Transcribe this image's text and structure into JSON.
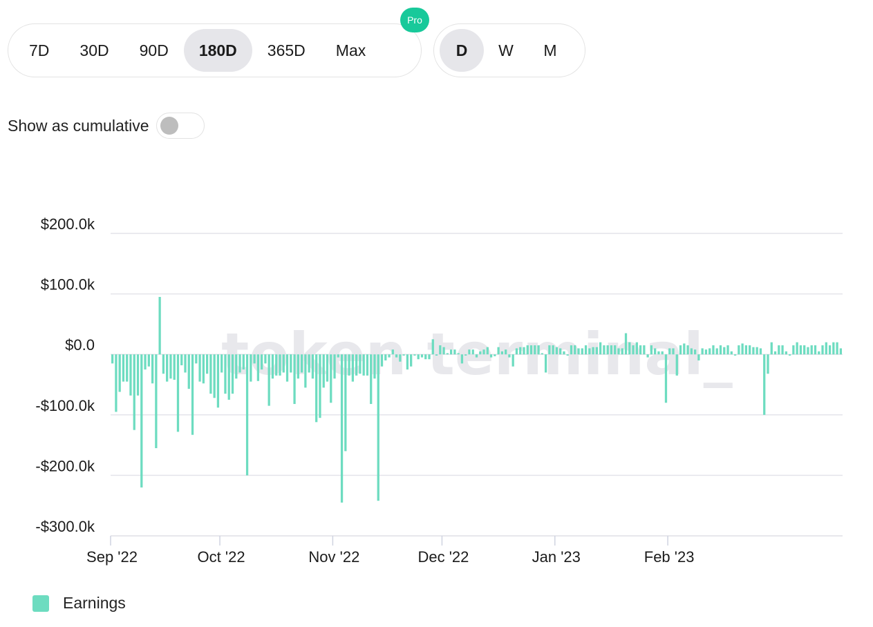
{
  "range_tabs": [
    {
      "label": "7D",
      "active": false
    },
    {
      "label": "30D",
      "active": false
    },
    {
      "label": "90D",
      "active": false
    },
    {
      "label": "180D",
      "active": true
    },
    {
      "label": "365D",
      "active": false
    },
    {
      "label": "Max",
      "active": false
    }
  ],
  "pro_badge": "Pro",
  "granularity_tabs": [
    {
      "label": "D",
      "active": true
    },
    {
      "label": "W",
      "active": false
    },
    {
      "label": "M",
      "active": false
    }
  ],
  "cumulative": {
    "label": "Show as cumulative",
    "enabled": false
  },
  "watermark": "token terminal_",
  "colors": {
    "earnings": "#6ddcc0",
    "grid": "#e4e4ea",
    "watermark": "#e6e6ea",
    "pro": "#18c99a"
  },
  "chart_data": {
    "type": "bar",
    "start_date": "2022-09-01",
    "x_ticks": [
      {
        "label": "Sep '22",
        "day": 0
      },
      {
        "label": "Oct '22",
        "day": 30
      },
      {
        "label": "Nov '22",
        "day": 61
      },
      {
        "label": "Dec '22",
        "day": 91
      },
      {
        "label": "Jan '23",
        "day": 122
      },
      {
        "label": "Feb '23",
        "day": 153
      }
    ],
    "y_ticks": [
      {
        "label": "$200.0k",
        "value": 200000
      },
      {
        "label": "$100.0k",
        "value": 100000
      },
      {
        "label": "$0.0",
        "value": 0
      },
      {
        "label": "-$100.0k",
        "value": -100000
      },
      {
        "label": "-$200.0k",
        "value": -200000
      },
      {
        "label": "-$300.0k",
        "value": -300000
      }
    ],
    "ylim": [
      -300000,
      200000
    ],
    "grid": true,
    "legend_position": "bottom-left",
    "series": [
      {
        "name": "Earnings",
        "values": [
          -15,
          -95,
          -62,
          -45,
          -45,
          -68,
          -125,
          -68,
          -220,
          -25,
          -20,
          -48,
          -155,
          95,
          -32,
          -45,
          -40,
          -42,
          -128,
          -18,
          -30,
          -57,
          -133,
          -15,
          -45,
          -48,
          -32,
          -65,
          -72,
          -88,
          -30,
          -65,
          -75,
          -65,
          -40,
          -30,
          -25,
          -200,
          -45,
          -15,
          -44,
          -25,
          -15,
          -85,
          -40,
          -35,
          -35,
          -30,
          -45,
          -30,
          -82,
          -40,
          -30,
          -55,
          -30,
          -40,
          -112,
          -105,
          -55,
          -45,
          -80,
          -40,
          -5,
          -245,
          -160,
          -35,
          -45,
          -35,
          -32,
          -35,
          -35,
          -82,
          -40,
          -242,
          -20,
          -10,
          -5,
          8,
          -5,
          -12,
          -2,
          -25,
          -20,
          -2,
          -8,
          -5,
          -8,
          -8,
          25,
          -2,
          15,
          12,
          2,
          8,
          8,
          2,
          -15,
          -2,
          8,
          8,
          -5,
          5,
          8,
          12,
          -5,
          -3,
          12,
          5,
          8,
          -5,
          -20,
          10,
          12,
          12,
          15,
          15,
          15,
          15,
          2,
          -30,
          15,
          15,
          12,
          10,
          5,
          -2,
          15,
          15,
          10,
          10,
          15,
          10,
          12,
          12,
          20,
          15,
          15,
          15,
          15,
          10,
          10,
          35,
          20,
          15,
          20,
          15,
          15,
          -5,
          15,
          10,
          5,
          5,
          -80,
          10,
          10,
          -35,
          15,
          18,
          15,
          10,
          8,
          -10,
          10,
          8,
          10,
          15,
          10,
          15,
          12,
          15,
          5,
          -2,
          15,
          18,
          15,
          15,
          12,
          12,
          10,
          -100,
          -32,
          20,
          5,
          15,
          15,
          5,
          -2,
          15,
          20,
          15,
          15,
          12,
          15,
          15,
          5,
          15,
          20,
          15,
          20,
          20,
          10
        ],
        "unit": "thousand USD"
      }
    ]
  }
}
